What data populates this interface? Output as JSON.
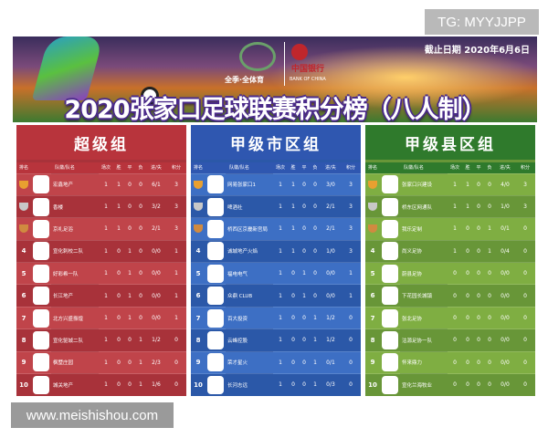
{
  "watermarks": {
    "top": "TG: MYYJJPP",
    "bottom": "www.meishishou.com"
  },
  "banner": {
    "title": "2020张家口足球联赛积分榜（八人制）",
    "date": "截止日期 2020年6月6日",
    "sponsor1": "全季·全体育",
    "sponsor2": "中国银行",
    "sponsor2_en": "BANK OF CHINA"
  },
  "columns": [
    "排名",
    "队徽/队名",
    "场次",
    "胜",
    "平",
    "负",
    "进/失",
    "积分"
  ],
  "groups": [
    {
      "title": "超级组",
      "color": "#b8343c",
      "row_a": "#c0444a",
      "row_b": "#a8323a",
      "rows": [
        [
          "1",
          "宏鑫地产",
          "1",
          "1",
          "0",
          "0",
          "6/1",
          "3"
        ],
        [
          "2",
          "香楼",
          "1",
          "1",
          "0",
          "0",
          "3/2",
          "3"
        ],
        [
          "3",
          "京礼足浴",
          "1",
          "1",
          "0",
          "0",
          "2/1",
          "3"
        ],
        [
          "4",
          "宣化刺校二队",
          "1",
          "0",
          "1",
          "0",
          "0/0",
          "1"
        ],
        [
          "5",
          "好彩希一队",
          "1",
          "0",
          "1",
          "0",
          "0/0",
          "1"
        ],
        [
          "6",
          "长江地产",
          "1",
          "0",
          "1",
          "0",
          "0/0",
          "1"
        ],
        [
          "7",
          "北方兴盛振煌",
          "1",
          "0",
          "1",
          "0",
          "0/0",
          "1"
        ],
        [
          "8",
          "宣化驱城二队",
          "1",
          "0",
          "0",
          "1",
          "1/2",
          "0"
        ],
        [
          "9",
          "枫墅庄园",
          "1",
          "0",
          "0",
          "1",
          "2/3",
          "0"
        ],
        [
          "10",
          "城关地产",
          "1",
          "0",
          "0",
          "1",
          "1/6",
          "0"
        ]
      ]
    },
    {
      "title": "甲级市区组",
      "color": "#2f57b0",
      "row_a": "#3d6fc4",
      "row_b": "#2b58a8",
      "rows": [
        [
          "1",
          "网易张家口1",
          "1",
          "1",
          "0",
          "0",
          "3/0",
          "3"
        ],
        [
          "2",
          "啤酒社",
          "1",
          "1",
          "0",
          "0",
          "2/1",
          "3"
        ],
        [
          "3",
          "桥西区京畿新宫局",
          "1",
          "1",
          "0",
          "0",
          "2/1",
          "3"
        ],
        [
          "4",
          "诚城地产火焰",
          "1",
          "1",
          "0",
          "0",
          "1/0",
          "3"
        ],
        [
          "5",
          "福电电气",
          "1",
          "0",
          "1",
          "0",
          "0/0",
          "1"
        ],
        [
          "6",
          "众鼎 CLUB",
          "1",
          "0",
          "1",
          "0",
          "0/0",
          "1"
        ],
        [
          "7",
          "百大投资",
          "1",
          "0",
          "0",
          "1",
          "1/2",
          "0"
        ],
        [
          "8",
          "云峰控股",
          "1",
          "0",
          "0",
          "1",
          "1/2",
          "0"
        ],
        [
          "9",
          "荣才星火",
          "1",
          "0",
          "0",
          "1",
          "0/1",
          "0"
        ],
        [
          "10",
          "长河志远",
          "1",
          "0",
          "0",
          "1",
          "0/3",
          "0"
        ]
      ]
    },
    {
      "title": "甲级县区组",
      "color": "#2f7a2c",
      "row_a": "#7fae42",
      "row_b": "#689638",
      "rows": [
        [
          "1",
          "张家口兴建设",
          "1",
          "1",
          "0",
          "0",
          "4/0",
          "3"
        ],
        [
          "2",
          "桥东区网通队",
          "1",
          "1",
          "0",
          "0",
          "1/0",
          "3"
        ],
        [
          "3",
          "我乐定制",
          "1",
          "0",
          "0",
          "1",
          "0/1",
          "0"
        ],
        [
          "4",
          "尚义足协",
          "1",
          "0",
          "0",
          "1",
          "0/4",
          "0"
        ],
        [
          "5",
          "蔚县足协",
          "0",
          "0",
          "0",
          "0",
          "0/0",
          "0"
        ],
        [
          "6",
          "下花园长城镇",
          "0",
          "0",
          "0",
          "0",
          "0/0",
          "0"
        ],
        [
          "7",
          "张北足协",
          "0",
          "0",
          "0",
          "0",
          "0/0",
          "0"
        ],
        [
          "8",
          "沽源足协一队",
          "0",
          "0",
          "0",
          "0",
          "0/0",
          "0"
        ],
        [
          "9",
          "怀来鼎力",
          "0",
          "0",
          "0",
          "0",
          "0/0",
          "0"
        ],
        [
          "10",
          "宣化兰海牧业",
          "0",
          "0",
          "0",
          "0",
          "0/0",
          "0"
        ]
      ]
    }
  ]
}
